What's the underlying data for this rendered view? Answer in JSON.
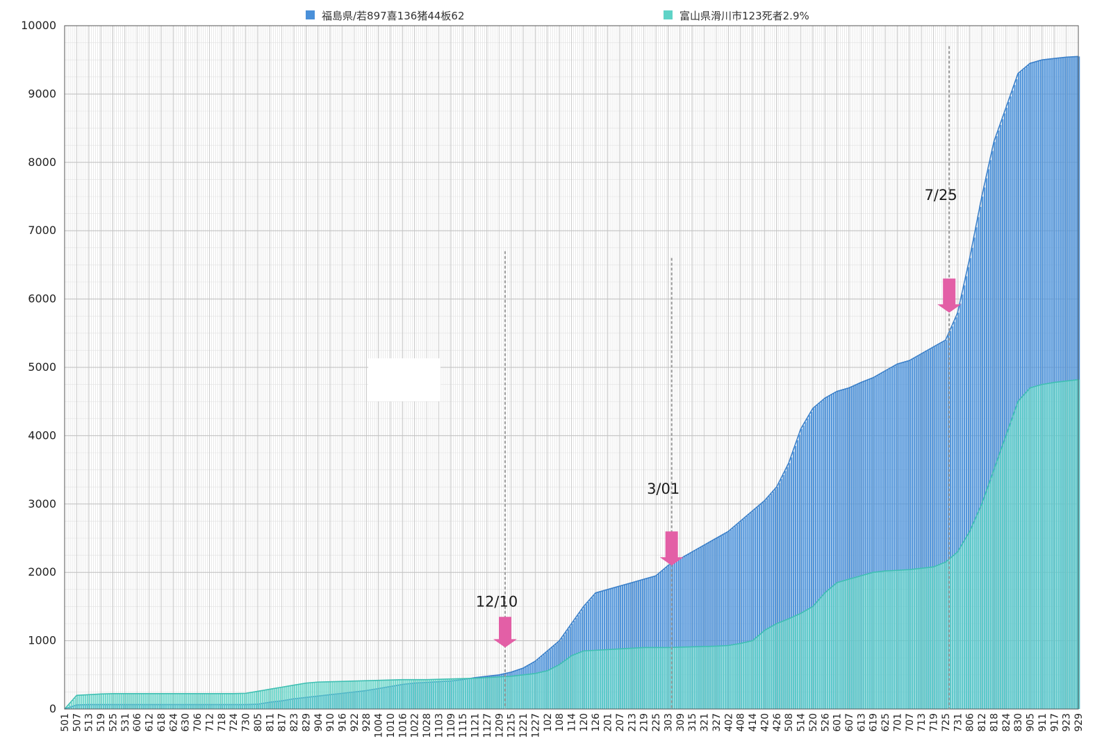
{
  "chart_data": {
    "type": "area",
    "title": "",
    "xlabel": "",
    "ylabel": "",
    "ylim": [
      0,
      10000
    ],
    "yticks": [
      0,
      1000,
      2000,
      3000,
      4000,
      5000,
      6000,
      7000,
      8000,
      9000,
      10000
    ],
    "grid": true,
    "legend_position": "top",
    "x_tick_labels": [
      "501",
      "507",
      "513",
      "519",
      "525",
      "531",
      "606",
      "612",
      "618",
      "624",
      "630",
      "706",
      "712",
      "718",
      "724",
      "730",
      "805",
      "811",
      "817",
      "823",
      "829",
      "904",
      "910",
      "916",
      "922",
      "928",
      "1004",
      "1010",
      "1016",
      "1022",
      "1028",
      "1103",
      "1109",
      "1115",
      "1121",
      "1127",
      "1209",
      "1215",
      "1221",
      "1227",
      "102",
      "108",
      "114",
      "120",
      "126",
      "201",
      "207",
      "213",
      "219",
      "225",
      "303",
      "309",
      "315",
      "321",
      "327",
      "402",
      "408",
      "414",
      "420",
      "426",
      "508",
      "514",
      "520",
      "526",
      "601",
      "607",
      "613",
      "619",
      "625",
      "701",
      "707",
      "713",
      "719",
      "725",
      "731",
      "806",
      "812",
      "818",
      "824",
      "830",
      "905",
      "911",
      "917",
      "923",
      "929"
    ],
    "series": [
      {
        "name": "福島県/若897喜136猪44板62",
        "color": "#4a90d9",
        "values": [
          0,
          60,
          65,
          65,
          65,
          65,
          65,
          65,
          65,
          65,
          65,
          65,
          65,
          65,
          65,
          65,
          70,
          100,
          120,
          150,
          170,
          190,
          210,
          230,
          250,
          270,
          300,
          330,
          360,
          380,
          390,
          400,
          410,
          430,
          460,
          480,
          500,
          540,
          600,
          700,
          850,
          1000,
          1250,
          1500,
          1700,
          1750,
          1800,
          1850,
          1900,
          1950,
          2100,
          2200,
          2300,
          2400,
          2500,
          2600,
          2750,
          2900,
          3050,
          3250,
          3600,
          4100,
          4400,
          4550,
          4650,
          4700,
          4780,
          4850,
          4950,
          5050,
          5100,
          5200,
          5300,
          5400,
          5800,
          6600,
          7500,
          8300,
          8800,
          9300,
          9450,
          9500,
          9520,
          9540,
          9550
        ]
      },
      {
        "name": "富山県滑川市123死者2.9%",
        "color": "#5fd3c7",
        "values": [
          0,
          200,
          210,
          220,
          225,
          225,
          225,
          225,
          225,
          225,
          225,
          225,
          225,
          225,
          225,
          230,
          260,
          290,
          320,
          350,
          380,
          395,
          400,
          405,
          410,
          415,
          420,
          425,
          430,
          430,
          430,
          435,
          440,
          445,
          450,
          460,
          470,
          480,
          500,
          520,
          560,
          650,
          780,
          850,
          860,
          870,
          880,
          890,
          900,
          900,
          900,
          905,
          910,
          915,
          920,
          930,
          960,
          1000,
          1150,
          1250,
          1320,
          1400,
          1500,
          1700,
          1850,
          1900,
          1950,
          2000,
          2020,
          2030,
          2040,
          2060,
          2080,
          2150,
          2300,
          2600,
          3000,
          3500,
          4000,
          4500,
          4700,
          4750,
          4780,
          4800,
          4820
        ]
      }
    ],
    "annotations": [
      {
        "label": "12/10",
        "x_index": 36.5,
        "arrow_top": 1350,
        "arrow_bottom": 900,
        "text_y": 1500,
        "line_top": 6700
      },
      {
        "label": "3/01",
        "x_index": 50.3,
        "arrow_top": 2600,
        "arrow_bottom": 2100,
        "text_y": 3150,
        "line_top": 6600
      },
      {
        "label": "7/25",
        "x_index": 73.3,
        "arrow_top": 6300,
        "arrow_bottom": 5800,
        "text_y": 7450,
        "line_top": 9700
      }
    ],
    "overlay": {
      "value_y_top": 5050,
      "value_y_bottom": 4480
    }
  }
}
